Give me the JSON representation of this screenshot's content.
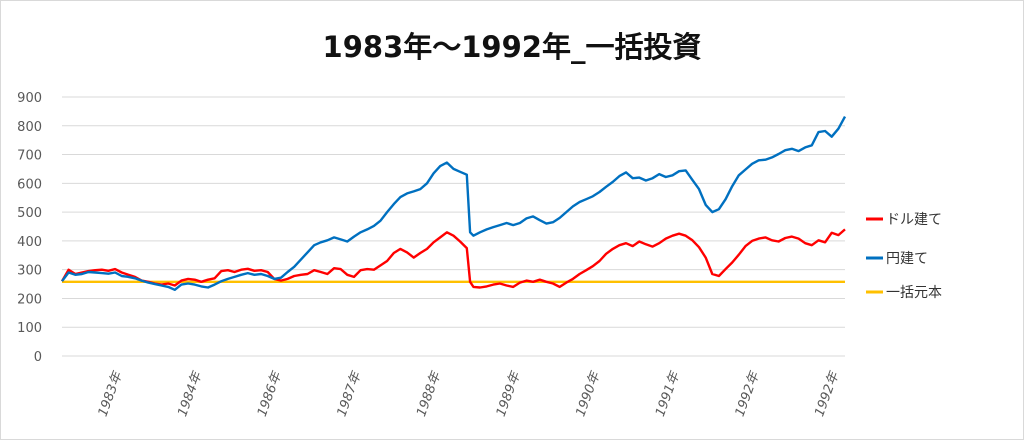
{
  "chart_data": {
    "type": "line",
    "title": "1983年～1992年_一括投資",
    "ylim": [
      0,
      900
    ],
    "yticks": [
      0,
      100,
      200,
      300,
      400,
      500,
      600,
      700,
      800,
      900
    ],
    "xlim": [
      0,
      118
    ],
    "xtick_labels": [
      {
        "x": 9,
        "label": "1983年"
      },
      {
        "x": 21,
        "label": "1984年"
      },
      {
        "x": 33,
        "label": "1986年"
      },
      {
        "x": 45,
        "label": "1987年"
      },
      {
        "x": 57,
        "label": "1988年"
      },
      {
        "x": 69,
        "label": "1989年"
      },
      {
        "x": 81,
        "label": "1990年"
      },
      {
        "x": 93,
        "label": "1991年"
      },
      {
        "x": 105,
        "label": "1992年"
      },
      {
        "x": 117,
        "label": "1992年"
      }
    ],
    "grid": true,
    "legend_position": "right",
    "series": [
      {
        "name": "ドル建て",
        "color": "#ff0000",
        "points": [
          [
            0,
            260
          ],
          [
            1,
            300
          ],
          [
            2,
            285
          ],
          [
            3,
            290
          ],
          [
            4,
            295
          ],
          [
            5,
            298
          ],
          [
            6,
            300
          ],
          [
            7,
            296
          ],
          [
            8,
            302
          ],
          [
            9,
            290
          ],
          [
            10,
            282
          ],
          [
            11,
            275
          ],
          [
            12,
            262
          ],
          [
            13,
            258
          ],
          [
            14,
            252
          ],
          [
            15,
            248
          ],
          [
            16,
            252
          ],
          [
            17,
            245
          ],
          [
            18,
            262
          ],
          [
            19,
            268
          ],
          [
            20,
            265
          ],
          [
            21,
            258
          ],
          [
            22,
            265
          ],
          [
            23,
            270
          ],
          [
            24,
            295
          ],
          [
            25,
            298
          ],
          [
            26,
            292
          ],
          [
            27,
            300
          ],
          [
            28,
            303
          ],
          [
            29,
            296
          ],
          [
            30,
            298
          ],
          [
            31,
            292
          ],
          [
            32,
            268
          ],
          [
            33,
            262
          ],
          [
            34,
            268
          ],
          [
            35,
            278
          ],
          [
            36,
            282
          ],
          [
            37,
            285
          ],
          [
            38,
            298
          ],
          [
            39,
            292
          ],
          [
            40,
            285
          ],
          [
            41,
            305
          ],
          [
            42,
            302
          ],
          [
            43,
            282
          ],
          [
            44,
            275
          ],
          [
            45,
            298
          ],
          [
            46,
            302
          ],
          [
            47,
            300
          ],
          [
            48,
            315
          ],
          [
            49,
            330
          ],
          [
            50,
            358
          ],
          [
            51,
            372
          ],
          [
            52,
            360
          ],
          [
            53,
            342
          ],
          [
            54,
            358
          ],
          [
            55,
            372
          ],
          [
            56,
            395
          ],
          [
            57,
            412
          ],
          [
            58,
            430
          ],
          [
            59,
            418
          ],
          [
            60,
            398
          ],
          [
            61,
            375
          ],
          [
            61.5,
            258
          ],
          [
            62,
            240
          ],
          [
            63,
            238
          ],
          [
            64,
            242
          ],
          [
            65,
            248
          ],
          [
            66,
            252
          ],
          [
            67,
            245
          ],
          [
            68,
            240
          ],
          [
            69,
            255
          ],
          [
            70,
            262
          ],
          [
            71,
            258
          ],
          [
            72,
            265
          ],
          [
            73,
            258
          ],
          [
            74,
            252
          ],
          [
            75,
            240
          ],
          [
            76,
            255
          ],
          [
            77,
            268
          ],
          [
            78,
            285
          ],
          [
            79,
            298
          ],
          [
            80,
            312
          ],
          [
            81,
            330
          ],
          [
            82,
            355
          ],
          [
            83,
            372
          ],
          [
            84,
            385
          ],
          [
            85,
            392
          ],
          [
            86,
            382
          ],
          [
            87,
            398
          ],
          [
            88,
            388
          ],
          [
            89,
            380
          ],
          [
            90,
            392
          ],
          [
            91,
            408
          ],
          [
            92,
            418
          ],
          [
            93,
            425
          ],
          [
            94,
            418
          ],
          [
            95,
            402
          ],
          [
            96,
            378
          ],
          [
            97,
            342
          ],
          [
            98,
            285
          ],
          [
            99,
            278
          ],
          [
            100,
            302
          ],
          [
            101,
            325
          ],
          [
            102,
            352
          ],
          [
            103,
            382
          ],
          [
            104,
            400
          ],
          [
            105,
            408
          ],
          [
            106,
            412
          ],
          [
            107,
            402
          ],
          [
            108,
            398
          ],
          [
            109,
            410
          ],
          [
            110,
            415
          ],
          [
            111,
            408
          ],
          [
            112,
            392
          ],
          [
            113,
            385
          ],
          [
            114,
            402
          ],
          [
            115,
            395
          ],
          [
            116,
            428
          ],
          [
            117,
            420
          ],
          [
            118,
            440
          ]
        ]
      },
      {
        "name": "円建て",
        "color": "#0070c0",
        "points": [
          [
            0,
            260
          ],
          [
            1,
            290
          ],
          [
            2,
            282
          ],
          [
            3,
            285
          ],
          [
            4,
            292
          ],
          [
            5,
            290
          ],
          [
            6,
            288
          ],
          [
            7,
            286
          ],
          [
            8,
            290
          ],
          [
            9,
            278
          ],
          [
            10,
            275
          ],
          [
            11,
            270
          ],
          [
            12,
            262
          ],
          [
            13,
            255
          ],
          [
            14,
            250
          ],
          [
            15,
            245
          ],
          [
            16,
            240
          ],
          [
            17,
            230
          ],
          [
            18,
            248
          ],
          [
            19,
            252
          ],
          [
            20,
            248
          ],
          [
            21,
            242
          ],
          [
            22,
            238
          ],
          [
            23,
            248
          ],
          [
            24,
            260
          ],
          [
            25,
            268
          ],
          [
            26,
            275
          ],
          [
            27,
            282
          ],
          [
            28,
            288
          ],
          [
            29,
            282
          ],
          [
            30,
            285
          ],
          [
            31,
            278
          ],
          [
            32,
            268
          ],
          [
            33,
            272
          ],
          [
            34,
            292
          ],
          [
            35,
            310
          ],
          [
            36,
            335
          ],
          [
            37,
            360
          ],
          [
            38,
            385
          ],
          [
            39,
            395
          ],
          [
            40,
            402
          ],
          [
            41,
            412
          ],
          [
            42,
            405
          ],
          [
            43,
            398
          ],
          [
            44,
            415
          ],
          [
            45,
            430
          ],
          [
            46,
            440
          ],
          [
            47,
            452
          ],
          [
            48,
            470
          ],
          [
            49,
            500
          ],
          [
            50,
            528
          ],
          [
            51,
            552
          ],
          [
            52,
            565
          ],
          [
            53,
            572
          ],
          [
            54,
            580
          ],
          [
            55,
            600
          ],
          [
            56,
            635
          ],
          [
            57,
            660
          ],
          [
            58,
            672
          ],
          [
            59,
            650
          ],
          [
            60,
            640
          ],
          [
            61,
            630
          ],
          [
            61.5,
            430
          ],
          [
            62,
            418
          ],
          [
            63,
            430
          ],
          [
            64,
            440
          ],
          [
            65,
            448
          ],
          [
            66,
            455
          ],
          [
            67,
            462
          ],
          [
            68,
            455
          ],
          [
            69,
            462
          ],
          [
            70,
            478
          ],
          [
            71,
            485
          ],
          [
            72,
            472
          ],
          [
            73,
            460
          ],
          [
            74,
            465
          ],
          [
            75,
            480
          ],
          [
            76,
            500
          ],
          [
            77,
            520
          ],
          [
            78,
            535
          ],
          [
            79,
            545
          ],
          [
            80,
            555
          ],
          [
            81,
            570
          ],
          [
            82,
            588
          ],
          [
            83,
            605
          ],
          [
            84,
            625
          ],
          [
            85,
            638
          ],
          [
            86,
            618
          ],
          [
            87,
            620
          ],
          [
            88,
            610
          ],
          [
            89,
            618
          ],
          [
            90,
            632
          ],
          [
            91,
            622
          ],
          [
            92,
            628
          ],
          [
            93,
            642
          ],
          [
            94,
            645
          ],
          [
            95,
            612
          ],
          [
            96,
            580
          ],
          [
            97,
            525
          ],
          [
            98,
            500
          ],
          [
            99,
            510
          ],
          [
            100,
            545
          ],
          [
            101,
            590
          ],
          [
            102,
            628
          ],
          [
            103,
            648
          ],
          [
            104,
            668
          ],
          [
            105,
            680
          ],
          [
            106,
            682
          ],
          [
            107,
            690
          ],
          [
            108,
            702
          ],
          [
            109,
            715
          ],
          [
            110,
            720
          ],
          [
            111,
            712
          ],
          [
            112,
            725
          ],
          [
            113,
            732
          ],
          [
            114,
            778
          ],
          [
            115,
            782
          ],
          [
            116,
            762
          ],
          [
            117,
            790
          ],
          [
            118,
            832
          ]
        ]
      },
      {
        "name": "一括元本",
        "color": "#ffc000",
        "points": [
          [
            0,
            258
          ],
          [
            118,
            258
          ]
        ]
      }
    ]
  }
}
